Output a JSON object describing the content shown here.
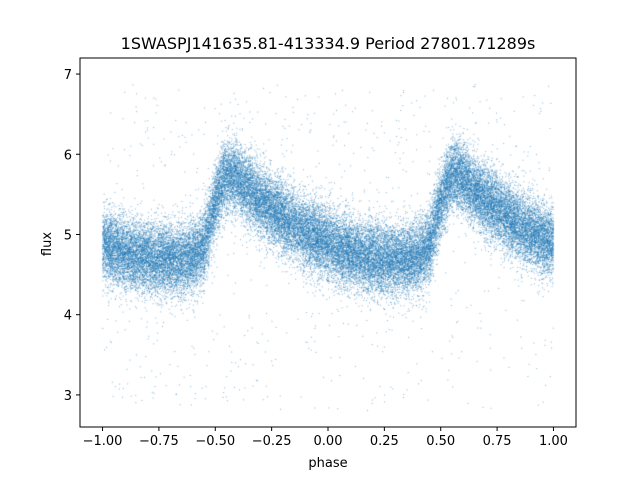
{
  "chart_data": {
    "type": "scatter",
    "title": "1SWASPJ141635.81-413334.9 Period 27801.71289s",
    "xlabel": "phase",
    "ylabel": "flux",
    "xlim": [
      -1.1,
      1.1
    ],
    "ylim": [
      2.6,
      7.2
    ],
    "x_ticks": [
      -1.0,
      -0.75,
      -0.5,
      -0.25,
      0.0,
      0.25,
      0.5,
      0.75,
      1.0
    ],
    "x_tick_labels": [
      "−1.00",
      "−0.75",
      "−0.50",
      "−0.25",
      "0.00",
      "0.25",
      "0.50",
      "0.75",
      "1.00"
    ],
    "y_ticks": [
      3,
      4,
      5,
      6,
      7
    ],
    "y_tick_labels": [
      "3",
      "4",
      "5",
      "6",
      "7"
    ],
    "grid": false,
    "point_color": "#1f77b4",
    "phase_range": [
      -1.0,
      1.0
    ],
    "mean_curve": {
      "phase": [
        0.0,
        0.05,
        0.1,
        0.15,
        0.2,
        0.25,
        0.3,
        0.35,
        0.4,
        0.45,
        0.5,
        0.55,
        0.6,
        0.65,
        0.7,
        0.75,
        0.8,
        0.85,
        0.9,
        0.95,
        1.0
      ],
      "flux": [
        4.9,
        4.82,
        4.77,
        4.73,
        4.71,
        4.69,
        4.69,
        4.69,
        4.72,
        4.85,
        5.4,
        5.75,
        5.7,
        5.55,
        5.42,
        5.32,
        5.22,
        5.12,
        5.02,
        4.95,
        4.9
      ]
    },
    "scatter_sigma": 0.22,
    "outlier_range": [
      2.8,
      6.9
    ]
  }
}
